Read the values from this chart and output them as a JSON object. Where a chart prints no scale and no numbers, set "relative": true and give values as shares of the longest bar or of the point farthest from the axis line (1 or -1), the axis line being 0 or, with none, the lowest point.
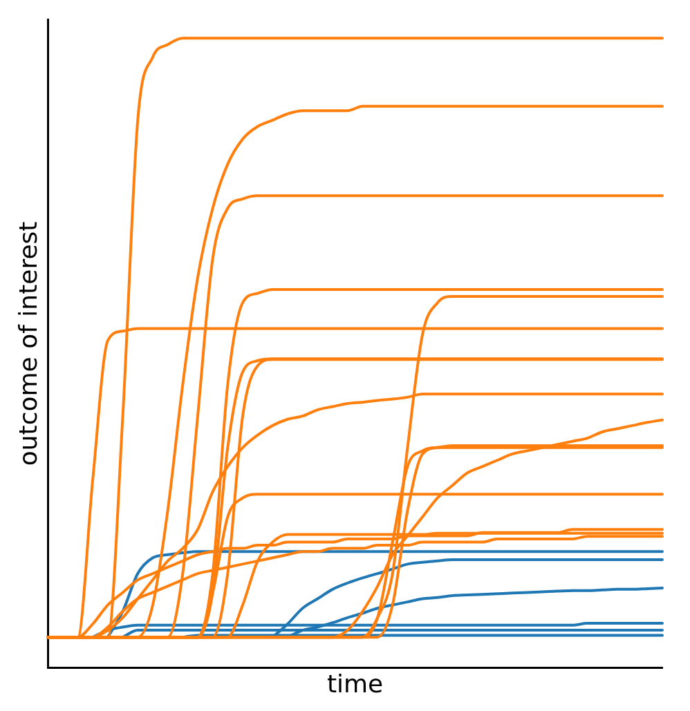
{
  "chart_data": {
    "type": "line",
    "relative": true,
    "xlabel": "time",
    "ylabel": "outcome of interest",
    "legend": false,
    "grid": false,
    "tick_labels": false,
    "marker": "none",
    "line_style": "solid",
    "categories": [
      null,
      null,
      null,
      null,
      null,
      null,
      null,
      null,
      null,
      null,
      null,
      null,
      null,
      null,
      null,
      null,
      null,
      null,
      null,
      null,
      null,
      null,
      null,
      null,
      null,
      null,
      null,
      null,
      null,
      null,
      null,
      null,
      null,
      null,
      null,
      null,
      null,
      null,
      null,
      null,
      null,
      null
    ],
    "series": [
      {
        "color": "#ff7f0e",
        "values": [
          0.049,
          0.049,
          0.049,
          0.049,
          0.049,
          0.4,
          0.87,
          0.97,
          0.99,
          1,
          1,
          1,
          1,
          1,
          1,
          1,
          1,
          1,
          1,
          1,
          1,
          1,
          1,
          1,
          1,
          1,
          1,
          1,
          1,
          1,
          1,
          1,
          1,
          1,
          1,
          1,
          1,
          1,
          1,
          1,
          1,
          1
        ]
      },
      {
        "color": "#ff7f0e",
        "values": [
          0.049,
          0.049,
          0.049,
          0.049,
          0.049,
          0.049,
          0.049,
          0.1,
          0.25,
          0.45,
          0.62,
          0.73,
          0.8,
          0.84,
          0.86,
          0.87,
          0.88,
          0.885,
          0.885,
          0.885,
          0.885,
          0.892,
          0.892,
          0.892,
          0.892,
          0.892,
          0.892,
          0.892,
          0.892,
          0.892,
          0.892,
          0.892,
          0.892,
          0.892,
          0.892,
          0.892,
          0.892,
          0.892,
          0.892,
          0.892,
          0.892,
          0.892
        ]
      },
      {
        "color": "#ff7f0e",
        "values": [
          0.049,
          0.049,
          0.049,
          0.049,
          0.049,
          0.049,
          0.049,
          0.049,
          0.049,
          0.15,
          0.4,
          0.65,
          0.73,
          0.745,
          0.75,
          0.75,
          0.75,
          0.75,
          0.75,
          0.75,
          0.75,
          0.75,
          0.75,
          0.75,
          0.75,
          0.75,
          0.75,
          0.75,
          0.75,
          0.75,
          0.75,
          0.75,
          0.75,
          0.75,
          0.75,
          0.75,
          0.75,
          0.75,
          0.75,
          0.75,
          0.75,
          0.75
        ]
      },
      {
        "color": "#ff7f0e",
        "values": [
          0.049,
          0.049,
          0.049,
          0.3,
          0.52,
          0.535,
          0.539,
          0.539,
          0.539,
          0.539,
          0.539,
          0.539,
          0.539,
          0.539,
          0.539,
          0.539,
          0.539,
          0.539,
          0.539,
          0.539,
          0.539,
          0.539,
          0.539,
          0.539,
          0.539,
          0.539,
          0.539,
          0.539,
          0.539,
          0.539,
          0.539,
          0.539,
          0.539,
          0.539,
          0.539,
          0.539,
          0.539,
          0.539,
          0.539,
          0.539,
          0.539,
          0.539
        ]
      },
      {
        "color": "#ff7f0e",
        "values": [
          0.049,
          0.049,
          0.049,
          0.049,
          0.049,
          0.049,
          0.049,
          0.049,
          0.049,
          0.049,
          0.049,
          0.15,
          0.45,
          0.58,
          0.595,
          0.601,
          0.601,
          0.601,
          0.601,
          0.601,
          0.601,
          0.601,
          0.601,
          0.601,
          0.601,
          0.601,
          0.601,
          0.601,
          0.601,
          0.601,
          0.601,
          0.601,
          0.601,
          0.601,
          0.601,
          0.601,
          0.601,
          0.601,
          0.601,
          0.601,
          0.601,
          0.601
        ]
      },
      {
        "color": "#ff7f0e",
        "values": [
          0.049,
          0.049,
          0.049,
          0.049,
          0.049,
          0.049,
          0.049,
          0.049,
          0.049,
          0.049,
          0.049,
          0.049,
          0.049,
          0.049,
          0.049,
          0.049,
          0.049,
          0.049,
          0.049,
          0.049,
          0.049,
          0.049,
          0.08,
          0.15,
          0.35,
          0.53,
          0.58,
          0.59,
          0.59,
          0.59,
          0.59,
          0.59,
          0.59,
          0.59,
          0.59,
          0.59,
          0.59,
          0.59,
          0.59,
          0.59,
          0.59,
          0.59
        ]
      },
      {
        "color": "#ff7f0e",
        "values": [
          0.049,
          0.049,
          0.049,
          0.049,
          0.049,
          0.049,
          0.049,
          0.049,
          0.049,
          0.049,
          0.049,
          0.12,
          0.35,
          0.47,
          0.488,
          0.491,
          0.491,
          0.491,
          0.491,
          0.491,
          0.491,
          0.491,
          0.491,
          0.491,
          0.491,
          0.491,
          0.491,
          0.491,
          0.491,
          0.491,
          0.491,
          0.491,
          0.491,
          0.491,
          0.491,
          0.491,
          0.491,
          0.491,
          0.491,
          0.491,
          0.491,
          0.491
        ]
      },
      {
        "color": "#ff7f0e",
        "values": [
          0.049,
          0.049,
          0.049,
          0.049,
          0.049,
          0.049,
          0.049,
          0.049,
          0.049,
          0.049,
          0.049,
          0.049,
          0.15,
          0.4,
          0.48,
          0.49,
          0.49,
          0.49,
          0.49,
          0.49,
          0.49,
          0.49,
          0.49,
          0.49,
          0.49,
          0.49,
          0.49,
          0.49,
          0.49,
          0.49,
          0.49,
          0.49,
          0.49,
          0.49,
          0.49,
          0.49,
          0.49,
          0.49,
          0.49,
          0.49,
          0.49,
          0.49
        ]
      },
      {
        "color": "#ff7f0e",
        "values": [
          0.049,
          0.049,
          0.049,
          0.049,
          0.06,
          0.08,
          0.11,
          0.14,
          0.17,
          0.19,
          0.22,
          0.28,
          0.32,
          0.35,
          0.37,
          0.385,
          0.395,
          0.4,
          0.41,
          0.415,
          0.42,
          0.422,
          0.425,
          0.427,
          0.43,
          0.435,
          0.435,
          0.435,
          0.435,
          0.435,
          0.435,
          0.435,
          0.435,
          0.435,
          0.435,
          0.435,
          0.435,
          0.435,
          0.435,
          0.435,
          0.435,
          0.435
        ]
      },
      {
        "color": "#ff7f0e",
        "values": [
          0.049,
          0.049,
          0.049,
          0.049,
          0.049,
          0.049,
          0.049,
          0.049,
          0.049,
          0.049,
          0.049,
          0.049,
          0.049,
          0.049,
          0.049,
          0.049,
          0.049,
          0.049,
          0.049,
          0.049,
          0.049,
          0.049,
          0.049,
          0.1,
          0.25,
          0.34,
          0.35,
          0.353,
          0.353,
          0.353,
          0.353,
          0.353,
          0.353,
          0.353,
          0.353,
          0.353,
          0.353,
          0.353,
          0.353,
          0.353,
          0.353,
          0.353
        ]
      },
      {
        "color": "#ff7f0e",
        "values": [
          0.049,
          0.049,
          0.049,
          0.049,
          0.049,
          0.049,
          0.049,
          0.049,
          0.049,
          0.049,
          0.049,
          0.049,
          0.049,
          0.049,
          0.049,
          0.049,
          0.049,
          0.049,
          0.049,
          0.049,
          0.049,
          0.049,
          0.08,
          0.2,
          0.32,
          0.345,
          0.35,
          0.35,
          0.35,
          0.35,
          0.35,
          0.35,
          0.35,
          0.35,
          0.35,
          0.35,
          0.35,
          0.35,
          0.35,
          0.35,
          0.35,
          0.35
        ]
      },
      {
        "color": "#ff7f0e",
        "values": [
          0.049,
          0.049,
          0.049,
          0.049,
          0.049,
          0.049,
          0.049,
          0.049,
          0.049,
          0.049,
          0.049,
          0.049,
          0.049,
          0.049,
          0.049,
          0.049,
          0.049,
          0.049,
          0.049,
          0.049,
          0.06,
          0.09,
          0.13,
          0.18,
          0.21,
          0.24,
          0.27,
          0.29,
          0.31,
          0.32,
          0.33,
          0.34,
          0.345,
          0.35,
          0.355,
          0.36,
          0.365,
          0.375,
          0.38,
          0.385,
          0.39,
          0.394
        ]
      },
      {
        "color": "#ff7f0e",
        "values": [
          0.049,
          0.049,
          0.049,
          0.049,
          0.049,
          0.049,
          0.049,
          0.049,
          0.049,
          0.049,
          0.049,
          0.12,
          0.24,
          0.27,
          0.276,
          0.276,
          0.276,
          0.276,
          0.276,
          0.276,
          0.276,
          0.276,
          0.276,
          0.276,
          0.276,
          0.276,
          0.276,
          0.276,
          0.276,
          0.276,
          0.276,
          0.276,
          0.276,
          0.276,
          0.276,
          0.276,
          0.276,
          0.276,
          0.276,
          0.276,
          0.276,
          0.276
        ]
      },
      {
        "color": "#ff7f0e",
        "values": [
          0.049,
          0.049,
          0.049,
          0.07,
          0.1,
          0.12,
          0.14,
          0.15,
          0.16,
          0.17,
          0.18,
          0.185,
          0.19,
          0.19,
          0.195,
          0.195,
          0.2,
          0.2,
          0.2,
          0.2,
          0.205,
          0.205,
          0.205,
          0.205,
          0.21,
          0.21,
          0.21,
          0.21,
          0.21,
          0.215,
          0.215,
          0.215,
          0.215,
          0.215,
          0.215,
          0.22,
          0.22,
          0.22,
          0.22,
          0.22,
          0.22,
          0.22
        ]
      },
      {
        "color": "#ff7f0e",
        "values": [
          0.049,
          0.049,
          0.049,
          0.049,
          0.065,
          0.09,
          0.11,
          0.12,
          0.13,
          0.14,
          0.15,
          0.155,
          0.16,
          0.165,
          0.17,
          0.175,
          0.18,
          0.185,
          0.185,
          0.19,
          0.19,
          0.19,
          0.195,
          0.195,
          0.195,
          0.2,
          0.2,
          0.2,
          0.2,
          0.2,
          0.205,
          0.205,
          0.205,
          0.205,
          0.205,
          0.205,
          0.209,
          0.209,
          0.209,
          0.209,
          0.209,
          0.209
        ]
      },
      {
        "color": "#ff7f0e",
        "values": [
          0.049,
          0.049,
          0.049,
          0.049,
          0.049,
          0.049,
          0.049,
          0.049,
          0.049,
          0.049,
          0.049,
          0.049,
          0.049,
          0.1,
          0.17,
          0.2,
          0.212,
          0.212,
          0.212,
          0.212,
          0.212,
          0.212,
          0.212,
          0.212,
          0.212,
          0.212,
          0.214,
          0.214,
          0.214,
          0.214,
          0.214,
          0.214,
          0.214,
          0.214,
          0.214,
          0.214,
          0.214,
          0.214,
          0.214,
          0.214,
          0.214,
          0.214
        ]
      },
      {
        "color": "#1f77b4",
        "values": [
          null,
          null,
          null,
          null,
          0.049,
          0.09,
          0.15,
          0.175,
          0.18,
          0.183,
          0.185,
          0.185,
          0.185,
          0.185,
          0.185,
          0.185,
          0.185,
          0.185,
          0.185,
          0.185,
          0.185,
          0.185,
          0.185,
          0.185,
          0.185,
          0.185,
          0.185,
          0.185,
          0.185,
          0.185,
          0.185,
          0.185,
          0.185,
          0.185,
          0.185,
          0.185,
          0.185,
          0.185,
          0.185,
          0.185,
          0.185,
          0.185
        ]
      },
      {
        "color": "#1f77b4",
        "values": [
          null,
          null,
          null,
          null,
          null,
          null,
          null,
          null,
          null,
          null,
          null,
          null,
          null,
          null,
          null,
          0.049,
          0.07,
          0.095,
          0.11,
          0.125,
          0.135,
          0.143,
          0.15,
          0.157,
          0.165,
          0.168,
          0.17,
          0.172,
          0.172,
          0.172,
          0.172,
          0.172,
          0.172,
          0.172,
          0.172,
          0.172,
          0.172,
          0.172,
          0.172,
          0.172,
          0.172,
          0.172
        ]
      },
      {
        "color": "#1f77b4",
        "values": [
          null,
          null,
          null,
          null,
          null,
          null,
          null,
          null,
          null,
          null,
          null,
          null,
          null,
          null,
          null,
          null,
          0.049,
          0.06,
          0.065,
          0.072,
          0.08,
          0.087,
          0.095,
          0.1,
          0.105,
          0.11,
          0.112,
          0.115,
          0.116,
          0.117,
          0.118,
          0.119,
          0.12,
          0.121,
          0.122,
          0.123,
          0.123,
          0.124,
          0.125,
          0.125,
          0.126,
          0.127
        ]
      },
      {
        "color": "#1f77b4",
        "values": [
          null,
          null,
          null,
          0.049,
          0.06,
          0.065,
          0.068,
          0.068,
          0.068,
          0.068,
          0.068,
          0.068,
          0.068,
          0.068,
          0.068,
          0.068,
          0.068,
          0.068,
          0.068,
          0.068,
          0.068,
          0.068,
          0.068,
          0.068,
          0.068,
          0.068,
          0.068,
          0.068,
          0.068,
          0.068,
          0.068,
          0.068,
          0.068,
          0.068,
          0.068,
          0.068,
          0.071,
          0.071,
          0.071,
          0.071,
          0.071,
          0.071
        ]
      },
      {
        "color": "#1f77b4",
        "values": [
          null,
          null,
          null,
          null,
          null,
          0.049,
          0.06,
          0.06,
          0.06,
          0.06,
          0.06,
          0.06,
          0.06,
          0.06,
          0.06,
          0.06,
          0.06,
          0.06,
          0.06,
          0.06,
          0.06,
          0.06,
          0.06,
          0.06,
          0.06,
          0.06,
          0.06,
          0.06,
          0.06,
          0.06,
          0.06,
          0.06,
          0.06,
          0.06,
          0.06,
          0.06,
          0.06,
          0.06,
          0.06,
          0.06,
          0.06,
          0.06
        ]
      },
      {
        "color": "#1f77b4",
        "values": [
          null,
          null,
          null,
          null,
          null,
          null,
          null,
          null,
          null,
          0.049,
          0.052,
          0.052,
          0.052,
          0.052,
          0.052,
          0.052,
          0.052,
          0.052,
          0.052,
          0.052,
          0.052,
          0.052,
          0.052,
          0.052,
          0.052,
          0.052,
          0.052,
          0.052,
          0.052,
          0.052,
          0.052,
          0.052,
          0.052,
          0.052,
          0.052,
          0.052,
          0.052,
          0.052,
          0.052,
          0.052,
          0.052,
          0.052
        ]
      }
    ]
  }
}
